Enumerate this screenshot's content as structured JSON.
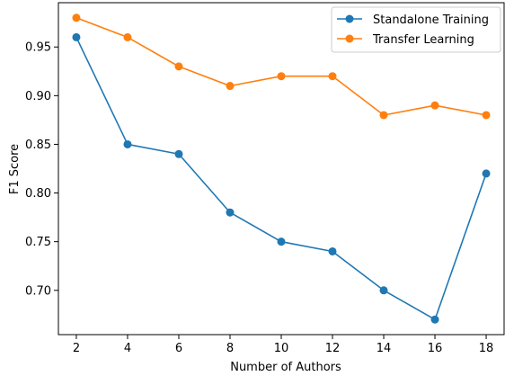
{
  "chart_data": {
    "type": "line",
    "title": "",
    "xlabel": "Number of Authors",
    "ylabel": "F1 Score",
    "x": [
      2,
      4,
      6,
      8,
      10,
      12,
      14,
      16,
      18
    ],
    "x_ticks": [
      "2",
      "4",
      "6",
      "8",
      "10",
      "12",
      "14",
      "16",
      "18"
    ],
    "y_ticks": [
      "0.70",
      "0.75",
      "0.80",
      "0.85",
      "0.90",
      "0.95"
    ],
    "y_tick_values": [
      0.7,
      0.75,
      0.8,
      0.85,
      0.9,
      0.95
    ],
    "xlim": [
      1.3,
      18.7
    ],
    "ylim": [
      0.6545,
      0.9955
    ],
    "grid": false,
    "legend_position": "top-right",
    "series": [
      {
        "name": "Standalone Training",
        "color": "#1f77b4",
        "values": [
          0.96,
          0.85,
          0.84,
          0.78,
          0.75,
          0.74,
          0.7,
          0.67,
          0.82
        ]
      },
      {
        "name": "Transfer Learning",
        "color": "#ff7f0e",
        "values": [
          0.98,
          0.96,
          0.93,
          0.91,
          0.92,
          0.92,
          0.88,
          0.89,
          0.88
        ]
      }
    ]
  }
}
